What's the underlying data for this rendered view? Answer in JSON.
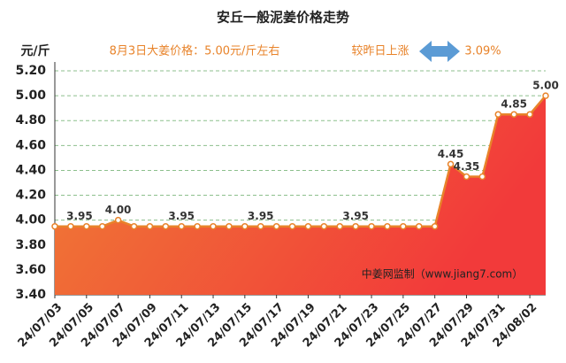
{
  "chart_data": {
    "type": "area",
    "title": "安丘一般泥姜价格走势",
    "y_unit": "元/斤",
    "note": "8月3日大姜价格：5.00元/斤左右",
    "change_text": "较昨日上涨",
    "change_value": "3.09%",
    "watermark": "中姜网监制（www.jiang7.com）",
    "categories": [
      "24/07/03",
      null,
      "24/07/05",
      null,
      "24/07/07",
      null,
      "24/07/09",
      null,
      "24/07/11",
      null,
      "24/07/13",
      null,
      "24/07/15",
      null,
      "24/07/17",
      null,
      "24/07/19",
      null,
      "24/07/21",
      null,
      "24/07/23",
      null,
      "24/07/25",
      null,
      "24/07/27",
      null,
      "24/07/29",
      null,
      "24/07/31",
      null,
      "24/08/02",
      null
    ],
    "values": [
      3.95,
      3.95,
      3.95,
      3.95,
      4.0,
      3.95,
      3.95,
      3.95,
      3.95,
      3.95,
      3.95,
      3.95,
      3.95,
      3.95,
      3.95,
      3.95,
      3.95,
      3.95,
      3.95,
      3.95,
      3.95,
      3.95,
      3.95,
      3.95,
      3.95,
      4.45,
      4.35,
      4.35,
      4.85,
      4.85,
      4.85,
      5.0
    ],
    "value_labels": [
      null,
      "3.95",
      null,
      null,
      "4.00",
      null,
      null,
      null,
      "3.95",
      null,
      null,
      null,
      null,
      "3.95",
      null,
      null,
      null,
      null,
      null,
      "3.95",
      null,
      null,
      null,
      null,
      null,
      "4.45",
      "4.35",
      null,
      null,
      "4.85",
      null,
      "5.00"
    ],
    "color": "#e8832a",
    "grid": true,
    "ylim": [
      3.4,
      5.2
    ],
    "yticks": [
      {
        "value": 3.4,
        "label": "3.40"
      },
      {
        "value": 3.6,
        "label": "3.60"
      },
      {
        "value": 3.8,
        "label": "3.80"
      },
      {
        "value": 4.0,
        "label": "4.00"
      },
      {
        "value": 4.2,
        "label": "4.20"
      },
      {
        "value": 4.4,
        "label": "4.40"
      },
      {
        "value": 4.6,
        "label": "4.60"
      },
      {
        "value": 4.8,
        "label": "4.80"
      },
      {
        "value": 5.0,
        "label": "5.00"
      },
      {
        "value": 5.2,
        "label": "5.20"
      }
    ]
  }
}
